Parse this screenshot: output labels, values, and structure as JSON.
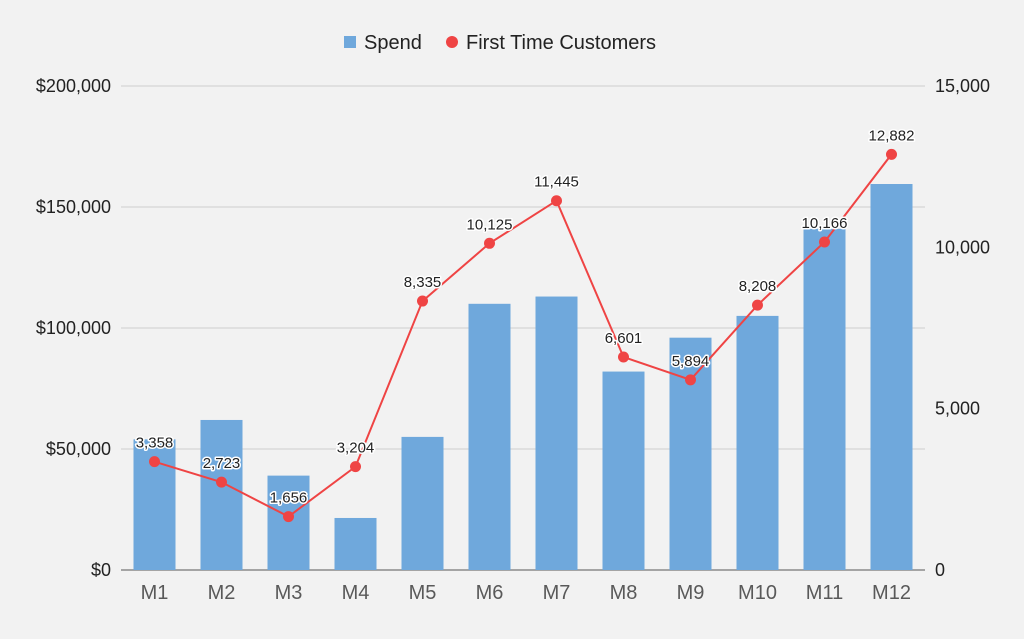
{
  "chart_data": {
    "type": "bar",
    "categories": [
      "M1",
      "M2",
      "M3",
      "M4",
      "M5",
      "M6",
      "M7",
      "M8",
      "M9",
      "M10",
      "M11",
      "M12"
    ],
    "series": [
      {
        "name": "Spend",
        "type": "bar",
        "axis": "left",
        "color": "#6fa8dc",
        "values": [
          54000,
          62000,
          39000,
          21500,
          55000,
          110000,
          113000,
          82000,
          96000,
          105000,
          141000,
          159500
        ]
      },
      {
        "name": "First Time Customers",
        "type": "line",
        "axis": "right",
        "color": "#ef4444",
        "values": [
          3358,
          2723,
          1656,
          3204,
          8335,
          10125,
          11445,
          6601,
          5894,
          8208,
          10166,
          12882
        ],
        "labels": [
          "3,358",
          "2,723",
          "1,656",
          "3,204",
          "8,335",
          "10,125",
          "11,445",
          "6,601",
          "5,894",
          "8,208",
          "10,166",
          "12,882"
        ]
      }
    ],
    "y_left": {
      "lim": [
        0,
        200000
      ],
      "ticks": [
        0,
        50000,
        100000,
        150000,
        200000
      ],
      "tick_labels": [
        "$0",
        "$50,000",
        "$100,000",
        "$150,000",
        "$200,000"
      ]
    },
    "y_right": {
      "lim": [
        0,
        15000
      ],
      "ticks": [
        0,
        5000,
        10000,
        15000
      ],
      "tick_labels": [
        "0",
        "5,000",
        "10,000",
        "15,000"
      ]
    },
    "grid": true,
    "legend": "top-center",
    "title": "",
    "xlabel": "",
    "ylabel": ""
  }
}
